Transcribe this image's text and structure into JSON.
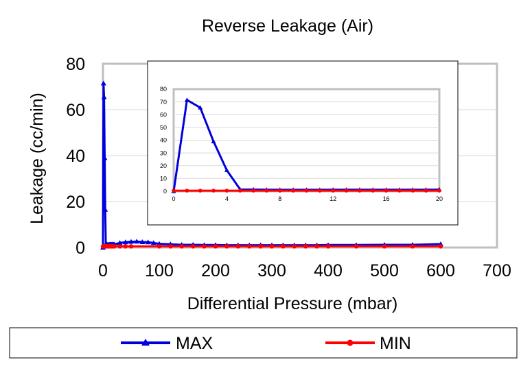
{
  "chart_data": [
    {
      "type": "line",
      "title": "Reverse Leakage (Air)",
      "xlabel": "Differential Pressure (mbar)",
      "ylabel": "Leakage (cc/min)",
      "xlim": [
        0,
        700
      ],
      "ylim": [
        0,
        80
      ],
      "xticks": [
        "0",
        "100",
        "200",
        "300",
        "400",
        "500",
        "600",
        "700"
      ],
      "yticks": [
        "0",
        "20",
        "40",
        "60",
        "80"
      ],
      "grid": "horizontal",
      "legend": "bottom",
      "series": [
        {
          "name": "MAX",
          "color": "#0000dd",
          "marker": "triangle",
          "x": [
            0,
            1,
            2,
            3,
            4,
            5,
            6,
            7,
            8,
            9,
            10,
            11,
            12,
            13,
            14,
            15,
            16,
            17,
            18,
            19,
            20,
            30,
            40,
            50,
            60,
            70,
            80,
            90,
            100,
            120,
            140,
            160,
            180,
            200,
            220,
            240,
            260,
            280,
            300,
            320,
            340,
            360,
            380,
            400,
            450,
            500,
            550,
            600
          ],
          "y": [
            0,
            71.5,
            65.5,
            39,
            16.5,
            1.5,
            1.4,
            1.3,
            1.2,
            1.2,
            1.2,
            1.2,
            1.3,
            1.3,
            1.3,
            1.3,
            1.3,
            1.3,
            1.3,
            1.3,
            1.4,
            2,
            2.3,
            2.5,
            2.6,
            2.4,
            2.3,
            2,
            1.6,
            1.4,
            1.2,
            1.2,
            1.1,
            1.1,
            1.0,
            1.0,
            1.0,
            1.0,
            1.0,
            1.0,
            1.0,
            1.0,
            1.0,
            1.1,
            1.1,
            1.2,
            1.2,
            1.5
          ]
        },
        {
          "name": "MIN",
          "color": "#ff0000",
          "marker": "circle",
          "x": [
            0,
            1,
            2,
            3,
            4,
            5,
            6,
            7,
            8,
            9,
            10,
            11,
            12,
            13,
            14,
            15,
            16,
            17,
            18,
            19,
            20,
            30,
            40,
            50,
            100,
            120,
            140,
            160,
            180,
            200,
            220,
            240,
            260,
            280,
            300,
            320,
            340,
            360,
            380,
            400,
            450,
            500,
            550,
            600
          ],
          "y": [
            0.5,
            0.5,
            0.5,
            0.5,
            0.5,
            0.5,
            0.5,
            0.5,
            0.5,
            0.5,
            0.5,
            0.5,
            0.5,
            0.5,
            0.5,
            0.5,
            0.5,
            0.5,
            0.5,
            0.5,
            0.5,
            0.5,
            0.5,
            0.5,
            0.5,
            0.5,
            0.5,
            0.5,
            0.5,
            0.5,
            0.5,
            0.5,
            0.5,
            0.5,
            0.5,
            0.5,
            0.5,
            0.5,
            0.5,
            0.5,
            0.5,
            0.5,
            0.5,
            0.5
          ]
        }
      ]
    },
    {
      "type": "line",
      "title": "",
      "xlabel": "",
      "ylabel": "",
      "xlim": [
        0,
        20
      ],
      "ylim": [
        0,
        80
      ],
      "xticks": [
        "0",
        "4",
        "8",
        "12",
        "16",
        "20"
      ],
      "yticks": [
        "0",
        "10",
        "20",
        "30",
        "40",
        "50",
        "60",
        "70",
        "80"
      ],
      "grid": "horizontal",
      "legend": "none",
      "series": [
        {
          "name": "MAX",
          "color": "#0000dd",
          "marker": "triangle",
          "x": [
            0,
            1,
            2,
            3,
            4,
            5,
            6,
            7,
            8,
            9,
            10,
            11,
            12,
            13,
            14,
            15,
            16,
            17,
            18,
            19,
            20
          ],
          "y": [
            0,
            71.5,
            65.5,
            39,
            16.5,
            1.5,
            1.4,
            1.3,
            1.2,
            1.2,
            1.2,
            1.2,
            1.3,
            1.3,
            1.3,
            1.3,
            1.3,
            1.3,
            1.3,
            1.3,
            1.4
          ]
        },
        {
          "name": "MIN",
          "color": "#ff0000",
          "marker": "circle",
          "x": [
            0,
            1,
            2,
            3,
            4,
            5,
            6,
            7,
            8,
            9,
            10,
            11,
            12,
            13,
            14,
            15,
            16,
            17,
            18,
            19,
            20
          ],
          "y": [
            0.5,
            0.5,
            0.5,
            0.5,
            0.5,
            0.5,
            0.5,
            0.5,
            0.5,
            0.5,
            0.5,
            0.5,
            0.5,
            0.5,
            0.5,
            0.5,
            0.5,
            0.5,
            0.5,
            0.5,
            0.5
          ]
        }
      ]
    }
  ]
}
